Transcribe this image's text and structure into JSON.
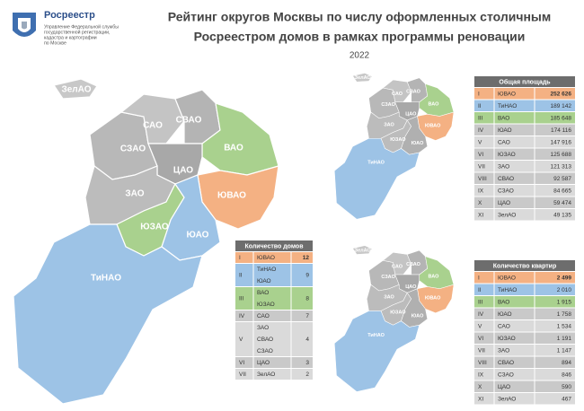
{
  "header": {
    "org": "Росреестр",
    "org_subtitle": [
      "Управление Федеральной службы",
      "государственной регистрации,",
      "кадастра и картографии",
      "по Москве"
    ]
  },
  "title": [
    "Рейтинг округов Москвы по числу оформленных столичным",
    "Росреестром домов в рамках программы реновации"
  ],
  "year": "2022",
  "map_labels": [
    "ЗелАО",
    "САО",
    "СВАО",
    "СЗАО",
    "ВАО",
    "ЦАО",
    "ЗАО",
    "ЮВАО",
    "ЮЗАО",
    "ЮАО",
    "ТиНАО"
  ],
  "tables": [
    {
      "title": "Количество домов",
      "rows": [
        {
          "rank": "I",
          "districts": [
            "ЮВАО"
          ],
          "value": "12"
        },
        {
          "rank": "II",
          "districts": [
            "ТиНАО",
            "ЮАО"
          ],
          "value": "9"
        },
        {
          "rank": "III",
          "districts": [
            "ВАО",
            "ЮЗАО"
          ],
          "value": "8"
        },
        {
          "rank": "IV",
          "districts": [
            "САО"
          ],
          "value": "7"
        },
        {
          "rank": "V",
          "districts": [
            "ЗАО",
            "СВАО",
            "СЗАО"
          ],
          "value": "4"
        },
        {
          "rank": "VI",
          "districts": [
            "ЦАО"
          ],
          "value": "3"
        },
        {
          "rank": "VII",
          "districts": [
            "ЗелАО"
          ],
          "value": "2"
        }
      ]
    },
    {
      "title": "Общая площадь",
      "rows": [
        {
          "rank": "I",
          "districts": [
            "ЮВАО"
          ],
          "value": "252 626"
        },
        {
          "rank": "II",
          "districts": [
            "ТиНАО"
          ],
          "value": "189 142"
        },
        {
          "rank": "III",
          "districts": [
            "ВАО"
          ],
          "value": "185 648"
        },
        {
          "rank": "IV",
          "districts": [
            "ЮАО"
          ],
          "value": "174 116"
        },
        {
          "rank": "V",
          "districts": [
            "САО"
          ],
          "value": "147 916"
        },
        {
          "rank": "VI",
          "districts": [
            "ЮЗАО"
          ],
          "value": "125 688"
        },
        {
          "rank": "VII",
          "districts": [
            "ЗАО"
          ],
          "value": "121 313"
        },
        {
          "rank": "VIII",
          "districts": [
            "СВАО"
          ],
          "value": "92 587"
        },
        {
          "rank": "IX",
          "districts": [
            "СЗАО"
          ],
          "value": "84 665"
        },
        {
          "rank": "X",
          "districts": [
            "ЦАО"
          ],
          "value": "59 474"
        },
        {
          "rank": "XI",
          "districts": [
            "ЗелАО"
          ],
          "value": "49 135"
        }
      ]
    },
    {
      "title": "Количество квартир",
      "rows": [
        {
          "rank": "I",
          "districts": [
            "ЮВАО"
          ],
          "value": "2 499"
        },
        {
          "rank": "II",
          "districts": [
            "ТиНАО"
          ],
          "value": "2 010"
        },
        {
          "rank": "III",
          "districts": [
            "ВАО"
          ],
          "value": "1 915"
        },
        {
          "rank": "IV",
          "districts": [
            "ЮАО"
          ],
          "value": "1 758"
        },
        {
          "rank": "V",
          "districts": [
            "САО"
          ],
          "value": "1 534"
        },
        {
          "rank": "VI",
          "districts": [
            "ЮЗАО"
          ],
          "value": "1 191"
        },
        {
          "rank": "VII",
          "districts": [
            "ЗАО"
          ],
          "value": "1 147"
        },
        {
          "rank": "VIII",
          "districts": [
            "СВАО"
          ],
          "value": "894"
        },
        {
          "rank": "IX",
          "districts": [
            "СЗАО"
          ],
          "value": "846"
        },
        {
          "rank": "X",
          "districts": [
            "ЦАО"
          ],
          "value": "590"
        },
        {
          "rank": "XI",
          "districts": [
            "ЗелАО"
          ],
          "value": "467"
        }
      ]
    }
  ]
}
